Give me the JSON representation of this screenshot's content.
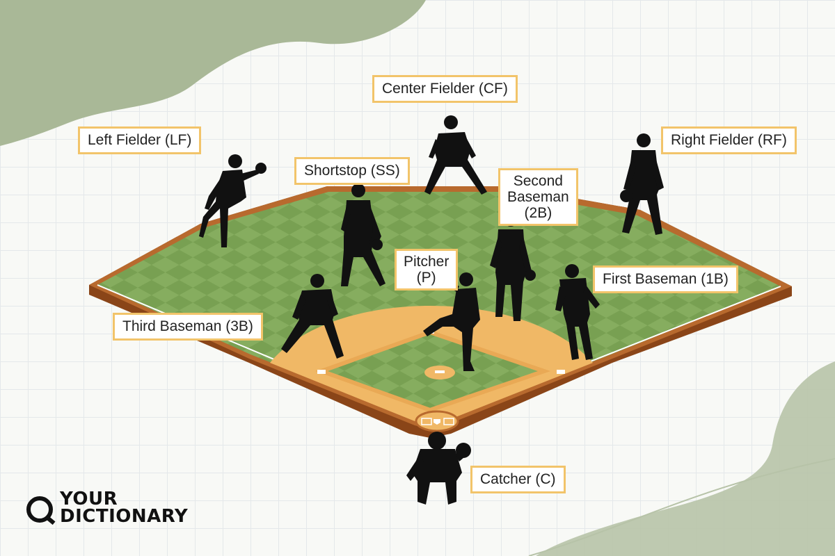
{
  "positions": {
    "center_fielder": "Center Fielder (CF)",
    "left_fielder": "Left Fielder (LF)",
    "right_fielder": "Right Fielder (RF)",
    "shortstop": "Shortstop (SS)",
    "second_baseman": "Second\nBaseman\n(2B)",
    "pitcher": "Pitcher\n(P)",
    "first_baseman": "First Baseman (1B)",
    "third_baseman": "Third Baseman (3B)",
    "catcher": "Catcher (C)"
  },
  "logo": {
    "text": "YOUR\nDICTIONARY",
    "icon": "q-magnifier-icon"
  },
  "colors": {
    "label_border": "#f2c46a",
    "grass_light": "#7fa75a",
    "grass_dark": "#6b9447",
    "infield_dirt": "#f0b866",
    "field_edge": "#a0521d",
    "background_blob": "#a9b897",
    "silhouette": "#111111"
  }
}
